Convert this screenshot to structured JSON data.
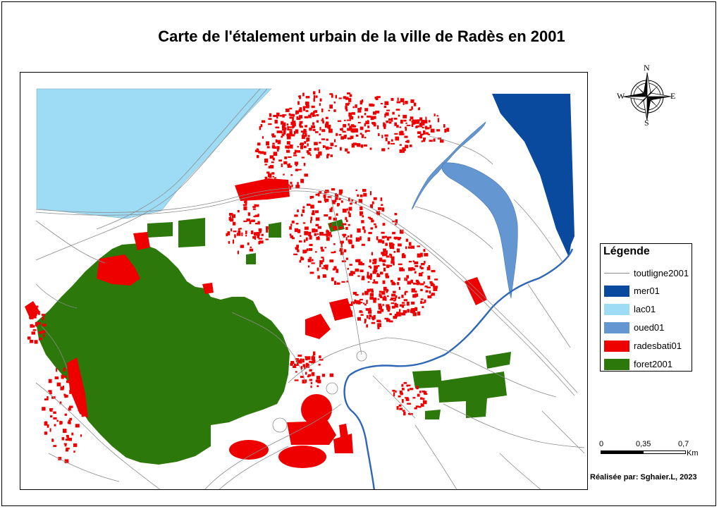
{
  "title": "Carte de l'étalement urbain de la ville de Radès en 2001",
  "compass": {
    "north": "N",
    "south": "S",
    "east": "E",
    "west": "W"
  },
  "legend": {
    "title": "Légende",
    "items": [
      {
        "label": "toutligne2001",
        "type": "line",
        "color": "#8c8c8c"
      },
      {
        "label": "mer01",
        "type": "fill",
        "color": "#0a4a9e"
      },
      {
        "label": "lac01",
        "type": "fill",
        "color": "#9edcf5"
      },
      {
        "label": "oued01",
        "type": "fill",
        "color": "#6496d2"
      },
      {
        "label": "radesbati01",
        "type": "fill",
        "color": "#ee0000"
      },
      {
        "label": "foret2001",
        "type": "fill",
        "color": "#2d780a"
      }
    ]
  },
  "scale": {
    "ticks": [
      "0",
      "0,35",
      "0,7"
    ],
    "unit": "Km"
  },
  "credit": "Réalisée par: Sghaier.L, 2023"
}
